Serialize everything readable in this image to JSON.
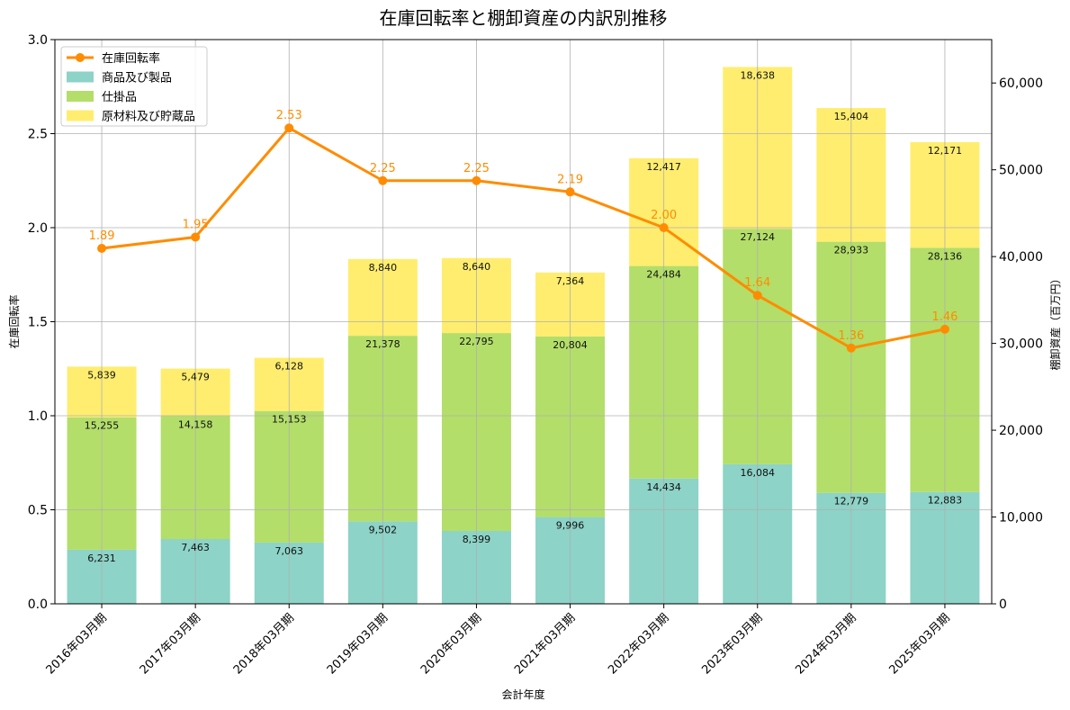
{
  "chart_data": {
    "type": "bar",
    "title": "在庫回転率と棚卸資産の内訳別推移",
    "xlabel": "会計年度",
    "ylabel_left": "在庫回転率",
    "ylabel_right": "棚卸資産（百万円）",
    "ylim_left": [
      0,
      3.0
    ],
    "ylim_right": [
      0,
      65000
    ],
    "left_ticks": [
      "0.0",
      "0.5",
      "1.0",
      "1.5",
      "2.0",
      "2.5",
      "3.0"
    ],
    "right_ticks": [
      "0",
      "10,000",
      "20,000",
      "30,000",
      "40,000",
      "50,000",
      "60,000"
    ],
    "grid": true,
    "legend_position": "top-left",
    "categories": [
      "2016年03月期",
      "2017年03月期",
      "2018年03月期",
      "2019年03月期",
      "2020年03月期",
      "2021年03月期",
      "2022年03月期",
      "2023年03月期",
      "2024年03月期",
      "2025年03月期"
    ],
    "series": [
      {
        "name": "商品及び製品",
        "type": "bar",
        "axis": "right",
        "color": "#8dd3c7",
        "values": [
          6231,
          7463,
          7063,
          9502,
          8399,
          9996,
          14434,
          16084,
          12779,
          12883
        ],
        "labels": [
          "6,231",
          "7,463",
          "7,063",
          "9,502",
          "8,399",
          "9,996",
          "14,434",
          "16,084",
          "12,779",
          "12,883"
        ]
      },
      {
        "name": "仕掛品",
        "type": "bar",
        "axis": "right",
        "color": "#b3de69",
        "values": [
          15255,
          14158,
          15153,
          21378,
          22795,
          20804,
          24484,
          27124,
          28933,
          28136
        ],
        "labels": [
          "15,255",
          "14,158",
          "15,153",
          "21,378",
          "22,795",
          "20,804",
          "24,484",
          "27,124",
          "28,933",
          "28,136"
        ]
      },
      {
        "name": "原材料及び貯蔵品",
        "type": "bar",
        "axis": "right",
        "color": "#ffed6f",
        "values": [
          5839,
          5479,
          6128,
          8840,
          8640,
          7364,
          12417,
          18638,
          15404,
          12171
        ],
        "labels": [
          "5,839",
          "5,479",
          "6,128",
          "8,840",
          "8,640",
          "7,364",
          "12,417",
          "18,638",
          "15,404",
          "12,171"
        ]
      },
      {
        "name": "在庫回転率",
        "type": "line",
        "axis": "left",
        "color": "#ff8c00",
        "values": [
          1.89,
          1.95,
          2.53,
          2.25,
          2.25,
          2.19,
          2.0,
          1.64,
          1.36,
          1.46
        ],
        "labels": [
          "1.89",
          "1.95",
          "2.53",
          "2.25",
          "2.25",
          "2.19",
          "2.00",
          "1.64",
          "1.36",
          "1.46"
        ]
      }
    ]
  }
}
